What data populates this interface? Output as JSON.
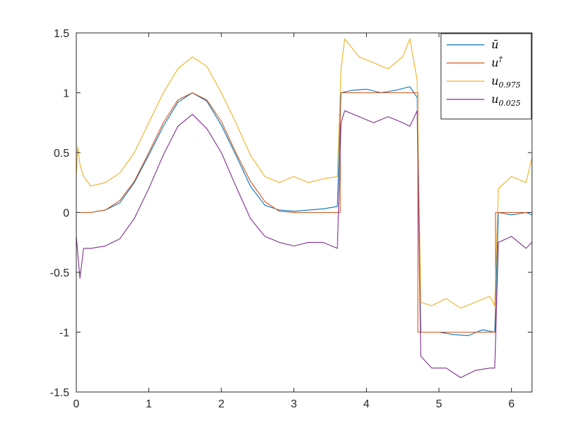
{
  "chart_data": {
    "type": "line",
    "title": "",
    "xlabel": "",
    "ylabel": "",
    "xlim": [
      0,
      6.2832
    ],
    "ylim": [
      -1.5,
      1.5
    ],
    "xticks": [
      0,
      1,
      2,
      3,
      4,
      5,
      6
    ],
    "yticks": [
      -1.5,
      -1,
      -0.5,
      0,
      0.5,
      1,
      1.5
    ],
    "xtick_labels": [
      "0",
      "1",
      "2",
      "3",
      "4",
      "5",
      "6"
    ],
    "ytick_labels": [
      "-1.5",
      "-1",
      "-0.5",
      "0",
      "0.5",
      "1",
      "1.5"
    ],
    "grid": false,
    "legend_position": "top-right",
    "series": [
      {
        "name": "ū",
        "legend_base": "u",
        "legend_mark": "ū",
        "legend_sup": "",
        "legend_sub": "",
        "color": "#0072BD",
        "x": [
          0,
          0.2,
          0.4,
          0.6,
          0.8,
          1.0,
          1.2,
          1.4,
          1.6,
          1.8,
          2.0,
          2.2,
          2.4,
          2.6,
          2.8,
          3.0,
          3.2,
          3.4,
          3.6,
          3.65,
          3.8,
          4.0,
          4.2,
          4.4,
          4.6,
          4.7,
          4.75,
          5.0,
          5.2,
          5.4,
          5.6,
          5.77,
          5.82,
          6.0,
          6.2,
          6.28
        ],
        "y": [
          0.0,
          0.0,
          0.02,
          0.08,
          0.25,
          0.48,
          0.72,
          0.92,
          1.0,
          0.93,
          0.73,
          0.48,
          0.22,
          0.06,
          0.02,
          0.01,
          0.02,
          0.03,
          0.05,
          1.0,
          1.02,
          1.03,
          1.0,
          1.02,
          1.05,
          0.96,
          -1.0,
          -1.0,
          -1.02,
          -1.03,
          -0.98,
          -1.0,
          0.0,
          -0.02,
          0.0,
          -0.02
        ]
      },
      {
        "name": "u†",
        "legend_base": "u",
        "legend_mark": "",
        "legend_sup": "†",
        "legend_sub": "",
        "color": "#D95319",
        "x": [
          0,
          0.2,
          0.4,
          0.6,
          0.8,
          1.0,
          1.2,
          1.4,
          1.6,
          1.8,
          2.0,
          2.2,
          2.4,
          2.6,
          2.8,
          3.0,
          3.2,
          3.4,
          3.64,
          3.64,
          4.71,
          4.71,
          5.78,
          5.78,
          6.28
        ],
        "y": [
          0.0,
          0.0,
          0.02,
          0.1,
          0.26,
          0.5,
          0.75,
          0.94,
          1.0,
          0.94,
          0.76,
          0.5,
          0.26,
          0.09,
          0.01,
          0.0,
          0.0,
          0.0,
          0.0,
          1.0,
          1.0,
          -1.0,
          -1.0,
          0.0,
          0.0
        ]
      },
      {
        "name": "u0.975",
        "legend_base": "u",
        "legend_mark": "",
        "legend_sup": "",
        "legend_sub": "0.975",
        "color": "#EDB120",
        "x": [
          0,
          0.02,
          0.05,
          0.1,
          0.2,
          0.4,
          0.6,
          0.8,
          1.0,
          1.2,
          1.4,
          1.6,
          1.8,
          2.0,
          2.2,
          2.4,
          2.6,
          2.8,
          3.0,
          3.2,
          3.4,
          3.6,
          3.65,
          3.7,
          3.9,
          4.1,
          4.3,
          4.5,
          4.6,
          4.7,
          4.75,
          4.9,
          5.1,
          5.3,
          5.5,
          5.7,
          5.77,
          5.82,
          6.0,
          6.2,
          6.28
        ],
        "y": [
          0.3,
          0.55,
          0.4,
          0.3,
          0.22,
          0.25,
          0.33,
          0.5,
          0.75,
          1.0,
          1.2,
          1.3,
          1.22,
          1.0,
          0.75,
          0.48,
          0.3,
          0.25,
          0.3,
          0.25,
          0.28,
          0.3,
          1.2,
          1.45,
          1.3,
          1.25,
          1.2,
          1.3,
          1.45,
          1.1,
          -0.75,
          -0.78,
          -0.72,
          -0.8,
          -0.75,
          -0.7,
          -0.78,
          0.2,
          0.3,
          0.25,
          0.45
        ]
      },
      {
        "name": "u0.025",
        "legend_base": "u",
        "legend_mark": "",
        "legend_sup": "",
        "legend_sub": "0.025",
        "color": "#7E2F8E",
        "x": [
          0,
          0.05,
          0.1,
          0.2,
          0.4,
          0.6,
          0.8,
          1.0,
          1.2,
          1.4,
          1.6,
          1.8,
          2.0,
          2.2,
          2.4,
          2.6,
          2.8,
          3.0,
          3.2,
          3.4,
          3.6,
          3.65,
          3.7,
          3.9,
          4.1,
          4.3,
          4.5,
          4.6,
          4.7,
          4.75,
          4.9,
          5.1,
          5.3,
          5.5,
          5.7,
          5.77,
          5.82,
          6.0,
          6.2,
          6.28
        ],
        "y": [
          -0.2,
          -0.55,
          -0.3,
          -0.3,
          -0.28,
          -0.22,
          -0.05,
          0.2,
          0.48,
          0.72,
          0.82,
          0.7,
          0.5,
          0.22,
          -0.05,
          -0.2,
          -0.25,
          -0.28,
          -0.25,
          -0.25,
          -0.3,
          0.75,
          0.85,
          0.8,
          0.75,
          0.8,
          0.75,
          0.72,
          0.85,
          -1.2,
          -1.3,
          -1.3,
          -1.38,
          -1.32,
          -1.3,
          -1.3,
          -0.25,
          -0.2,
          -0.3,
          -0.25
        ]
      }
    ]
  }
}
